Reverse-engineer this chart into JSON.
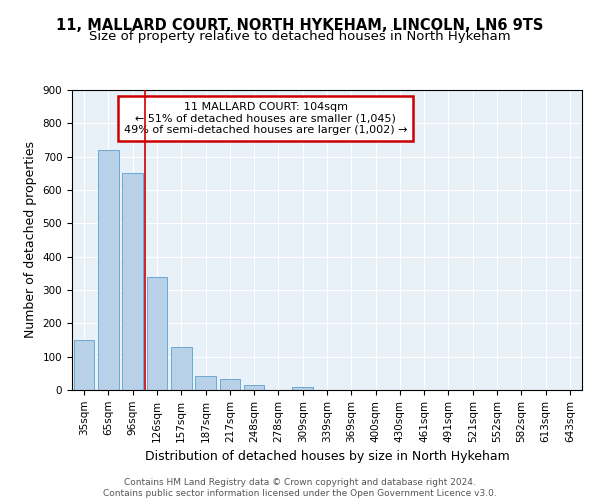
{
  "title1": "11, MALLARD COURT, NORTH HYKEHAM, LINCOLN, LN6 9TS",
  "title2": "Size of property relative to detached houses in North Hykeham",
  "xlabel": "Distribution of detached houses by size in North Hykeham",
  "ylabel": "Number of detached properties",
  "categories": [
    "35sqm",
    "65sqm",
    "96sqm",
    "126sqm",
    "157sqm",
    "187sqm",
    "217sqm",
    "248sqm",
    "278sqm",
    "309sqm",
    "339sqm",
    "369sqm",
    "400sqm",
    "430sqm",
    "461sqm",
    "491sqm",
    "521sqm",
    "552sqm",
    "582sqm",
    "613sqm",
    "643sqm"
  ],
  "values": [
    150,
    720,
    650,
    340,
    130,
    42,
    33,
    15,
    0,
    10,
    0,
    0,
    0,
    0,
    0,
    0,
    0,
    0,
    0,
    0,
    0
  ],
  "bar_color": "#b8d0e8",
  "bar_edge_color": "#6aaad4",
  "vline_x": 2.5,
  "vline_color": "#cc0000",
  "annotation_text": "11 MALLARD COURT: 104sqm\n← 51% of detached houses are smaller (1,045)\n49% of semi-detached houses are larger (1,002) →",
  "annotation_box_color": "#cc0000",
  "ylim": [
    0,
    900
  ],
  "yticks": [
    0,
    100,
    200,
    300,
    400,
    500,
    600,
    700,
    800,
    900
  ],
  "background_color": "#e8f0f8",
  "grid_color": "#ffffff",
  "footer": "Contains HM Land Registry data © Crown copyright and database right 2024.\nContains public sector information licensed under the Open Government Licence v3.0.",
  "title1_fontsize": 10.5,
  "title2_fontsize": 9.5,
  "xlabel_fontsize": 9,
  "ylabel_fontsize": 9,
  "tick_fontsize": 7.5,
  "annotation_fontsize": 8,
  "footer_fontsize": 6.5
}
